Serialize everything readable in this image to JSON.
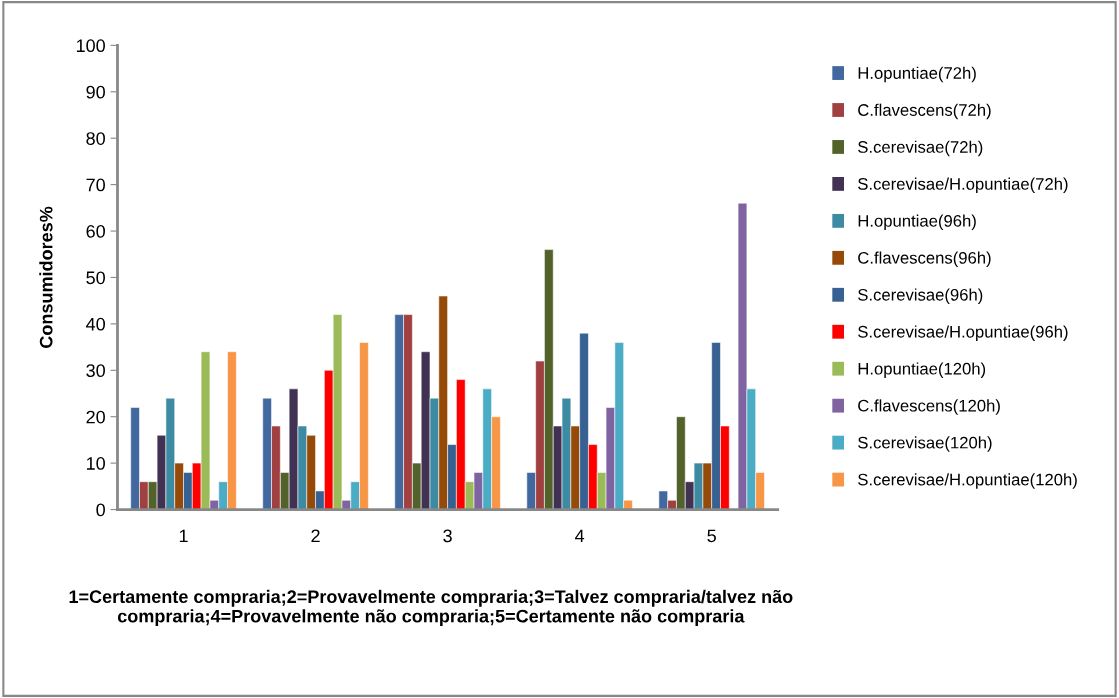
{
  "chart_data": {
    "type": "bar",
    "ylabel": "Consumidores%",
    "categories": [
      "1",
      "2",
      "3",
      "4",
      "5"
    ],
    "series": [
      {
        "name": "H.opuntiae(72h)",
        "color": "#4169a0",
        "values": [
          22,
          24,
          42,
          8,
          4
        ]
      },
      {
        "name": "C.flavescens(72h)",
        "color": "#a04040",
        "values": [
          6,
          18,
          42,
          32,
          2
        ]
      },
      {
        "name": "S.cerevisae(72h)",
        "color": "#52622a",
        "values": [
          6,
          8,
          10,
          56,
          20
        ]
      },
      {
        "name": "S.cerevisae/H.opuntiae(72h)",
        "color": "#413253",
        "values": [
          16,
          26,
          34,
          18,
          6
        ]
      },
      {
        "name": "H.opuntiae(96h)",
        "color": "#3c8ba2",
        "values": [
          24,
          18,
          24,
          24,
          10
        ]
      },
      {
        "name": "C.flavescens(96h)",
        "color": "#964a08",
        "values": [
          10,
          16,
          46,
          18,
          10
        ]
      },
      {
        "name": "S.cerevisae(96h)",
        "color": "#366192",
        "values": [
          8,
          4,
          14,
          38,
          36
        ]
      },
      {
        "name": "S.cerevisae/H.opuntiae(96h)",
        "color": "#ff0000",
        "values": [
          10,
          30,
          28,
          14,
          18
        ]
      },
      {
        "name": "H.opuntiae(120h)",
        "color": "#9bbb59",
        "values": [
          34,
          42,
          6,
          8,
          null
        ]
      },
      {
        "name": "C.flavescens(120h)",
        "color": "#8064a2",
        "values": [
          2,
          2,
          8,
          22,
          66
        ]
      },
      {
        "name": "S.cerevisae(120h)",
        "color": "#4bacc6",
        "values": [
          6,
          6,
          26,
          36,
          26
        ]
      },
      {
        "name": "S.cerevisae/H.opuntiae(120h)",
        "color": "#f79646",
        "values": [
          34,
          36,
          20,
          2,
          8
        ]
      }
    ],
    "ylim": [
      0,
      100
    ],
    "yticks": [
      0,
      10,
      20,
      30,
      40,
      50,
      60,
      70,
      80,
      90,
      100
    ],
    "grid": false,
    "legend": "right",
    "annotations": [
      "1=Certamente compraria;2=Provavelmente compraria;3=Talvez compraria/talvez não compraria;4=Provavelmente não compraria;5=Certamente não compraria"
    ]
  }
}
